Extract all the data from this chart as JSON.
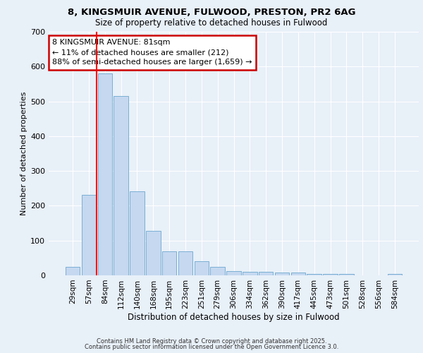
{
  "title_line1": "8, KINGSMUIR AVENUE, FULWOOD, PRESTON, PR2 6AG",
  "title_line2": "Size of property relative to detached houses in Fulwood",
  "xlabel": "Distribution of detached houses by size in Fulwood",
  "ylabel": "Number of detached properties",
  "bar_labels": [
    "29sqm",
    "57sqm",
    "84sqm",
    "112sqm",
    "140sqm",
    "168sqm",
    "195sqm",
    "223sqm",
    "251sqm",
    "279sqm",
    "306sqm",
    "334sqm",
    "362sqm",
    "390sqm",
    "417sqm",
    "445sqm",
    "473sqm",
    "501sqm",
    "528sqm",
    "556sqm",
    "584sqm"
  ],
  "bar_values": [
    25,
    232,
    580,
    515,
    242,
    127,
    70,
    70,
    40,
    25,
    13,
    10,
    10,
    8,
    8,
    5,
    5,
    5,
    0,
    0,
    5
  ],
  "bar_color": "#c5d8f0",
  "bar_edge_color": "#7bafd4",
  "background_color": "#e8f0f8",
  "grid_color": "#ffffff",
  "red_line_x": 1.5,
  "annotation_text": "8 KINGSMUIR AVENUE: 81sqm\n← 11% of detached houses are smaller (212)\n88% of semi-detached houses are larger (1,659) →",
  "annotation_box_color": "#ffffff",
  "annotation_border_color": "#cc0000",
  "ylim": [
    0,
    700
  ],
  "yticks": [
    0,
    100,
    200,
    300,
    400,
    500,
    600,
    700
  ],
  "footer_line1": "Contains HM Land Registry data © Crown copyright and database right 2025.",
  "footer_line2": "Contains public sector information licensed under the Open Government Licence 3.0."
}
